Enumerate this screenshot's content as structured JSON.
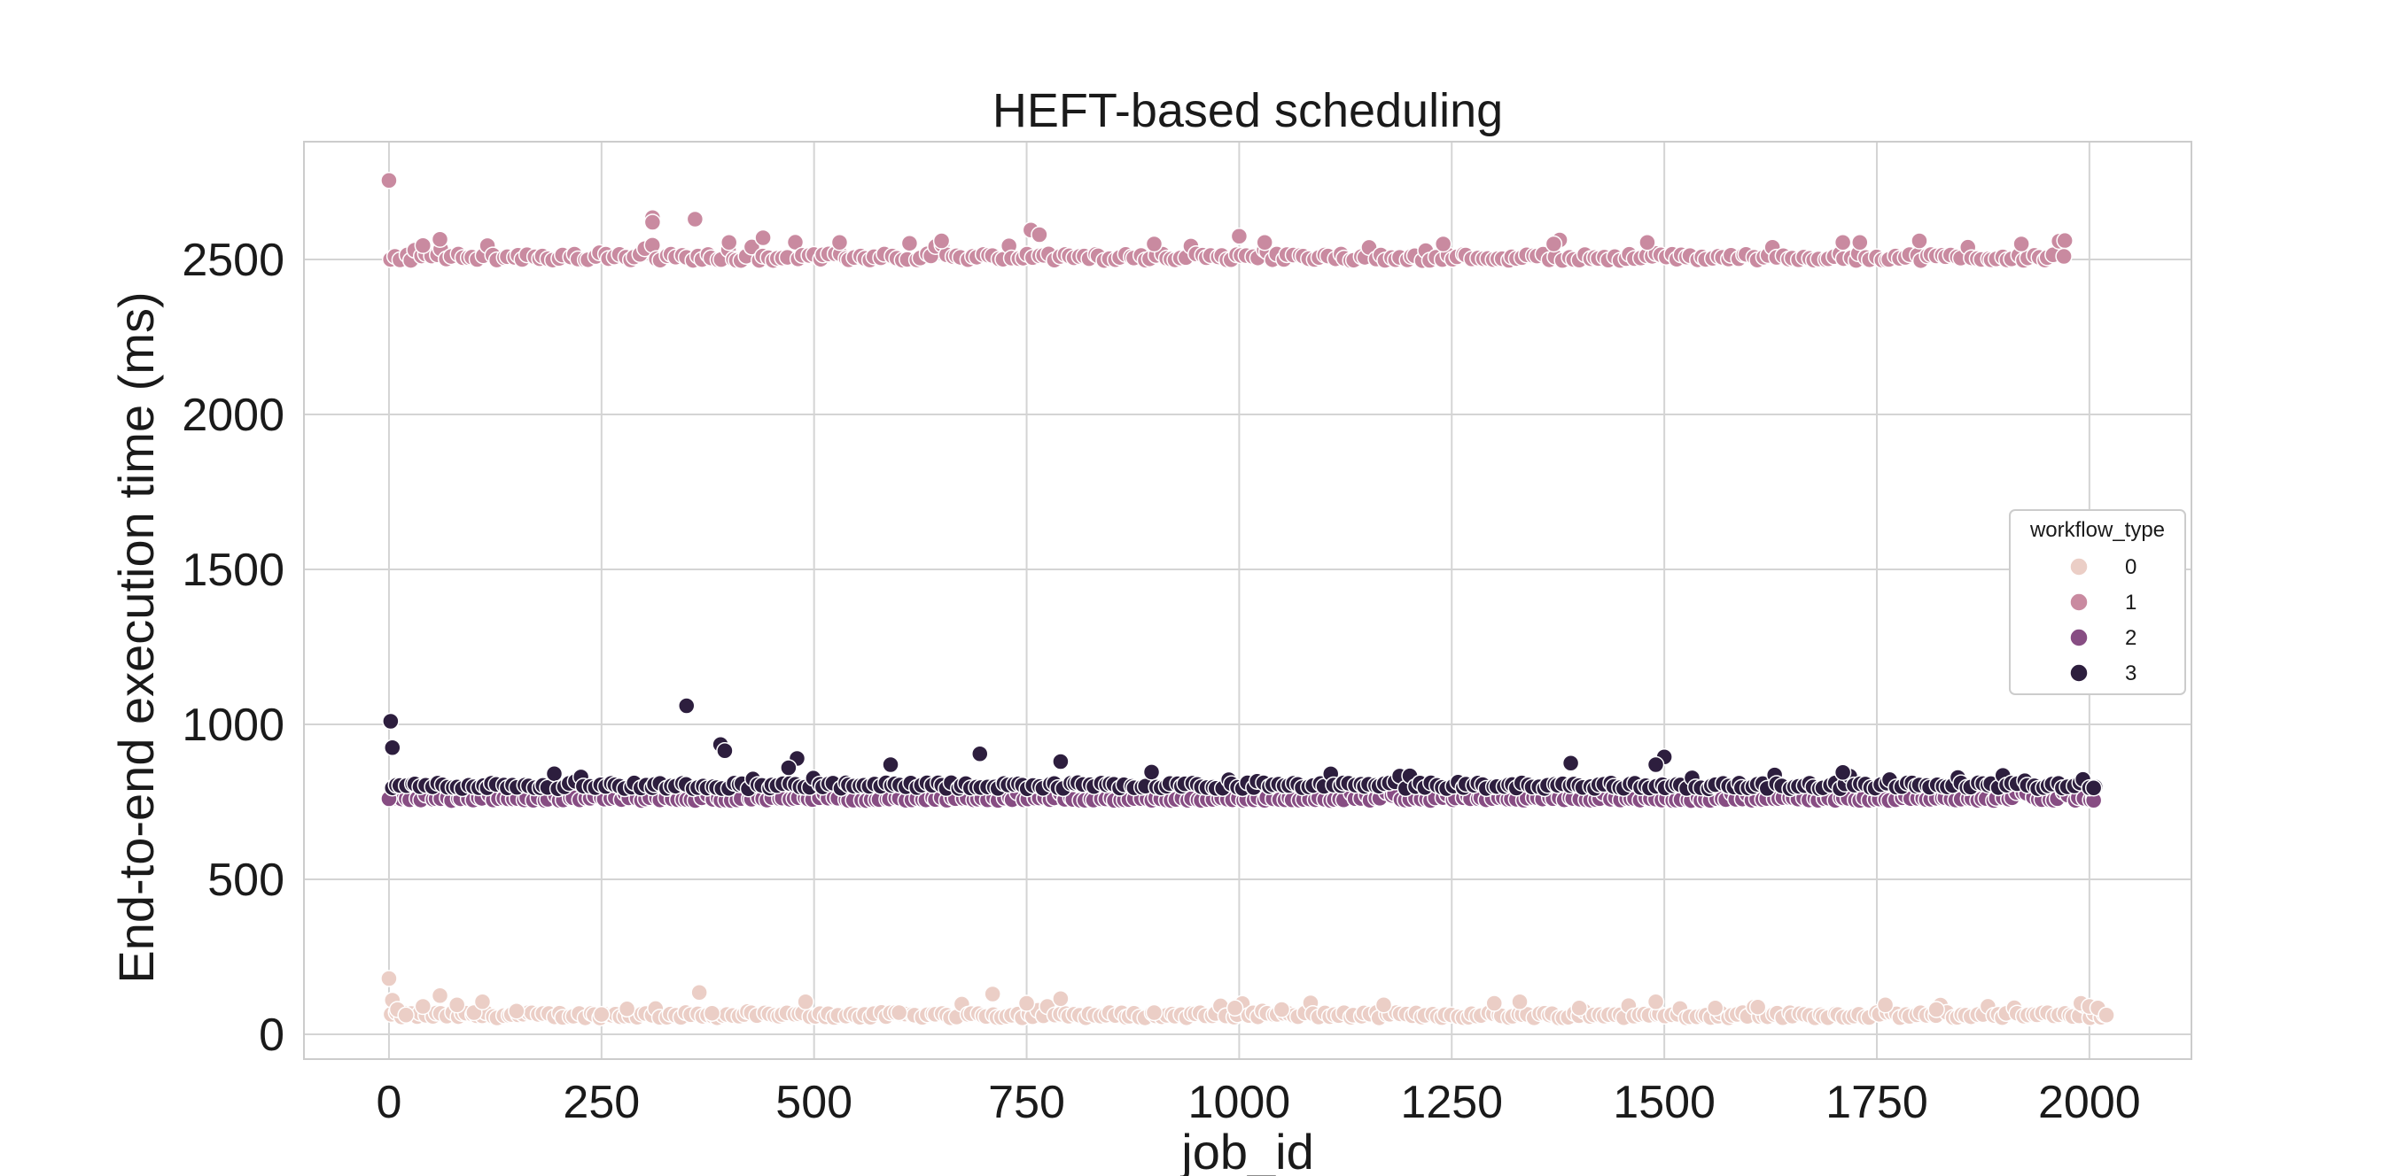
{
  "chart_data": {
    "type": "scatter",
    "title": "HEFT-based scheduling",
    "xlabel": "job_id",
    "ylabel": "End-to-end execution time (ms)",
    "xlim": [
      -100,
      2120
    ],
    "ylim": [
      -80,
      2880
    ],
    "xticks": [
      0,
      250,
      500,
      750,
      1000,
      1250,
      1500,
      1750,
      2000
    ],
    "yticks": [
      0,
      500,
      1000,
      1500,
      2000,
      2500
    ],
    "grid": true,
    "legend": {
      "title": "workflow_type",
      "placement": "right",
      "entries": [
        "0",
        "1",
        "2",
        "3"
      ]
    },
    "colors": {
      "0": "#ebcec6",
      "1": "#c98aa0",
      "2": "#874d83",
      "3": "#2d1e3e",
      "grid": "#d4d4d4",
      "background": "#ffffff"
    },
    "series": [
      {
        "name": "0",
        "x_range": [
          0,
          2020
        ],
        "points": [
          [
            0,
            180
          ],
          [
            4,
            110
          ],
          [
            10,
            80
          ],
          [
            20,
            62
          ],
          [
            40,
            90
          ],
          [
            60,
            125
          ],
          [
            80,
            95
          ],
          [
            100,
            70
          ],
          [
            110,
            105
          ],
          [
            150,
            75
          ],
          [
            250,
            64
          ],
          [
            280,
            82
          ],
          [
            365,
            135
          ],
          [
            380,
            68
          ],
          [
            490,
            105
          ],
          [
            600,
            70
          ],
          [
            710,
            130
          ],
          [
            750,
            100
          ],
          [
            790,
            115
          ],
          [
            900,
            70
          ],
          [
            995,
            85
          ],
          [
            1050,
            80
          ],
          [
            1170,
            95
          ],
          [
            1300,
            100
          ],
          [
            1330,
            105
          ],
          [
            1400,
            85
          ],
          [
            1490,
            105
          ],
          [
            1560,
            85
          ],
          [
            1610,
            88
          ],
          [
            1760,
            95
          ],
          [
            1820,
            80
          ],
          [
            1990,
            100
          ],
          [
            2000,
            90
          ],
          [
            2010,
            85
          ],
          [
            2020,
            62
          ]
        ],
        "baseline": 60,
        "jitter": 18
      },
      {
        "name": "1",
        "x_range": [
          0,
          1970
        ],
        "points": [
          [
            0,
            2755
          ],
          [
            60,
            2565
          ],
          [
            40,
            2545
          ],
          [
            310,
            2635
          ],
          [
            310,
            2620
          ],
          [
            360,
            2630
          ],
          [
            440,
            2570
          ],
          [
            400,
            2555
          ],
          [
            530,
            2555
          ],
          [
            650,
            2560
          ],
          [
            755,
            2595
          ],
          [
            765,
            2580
          ],
          [
            900,
            2550
          ],
          [
            1000,
            2575
          ],
          [
            1030,
            2555
          ],
          [
            1240,
            2550
          ],
          [
            1370,
            2550
          ],
          [
            1480,
            2555
          ],
          [
            1710,
            2555
          ],
          [
            1730,
            2555
          ],
          [
            1800,
            2560
          ],
          [
            1920,
            2550
          ],
          [
            1970,
            2510
          ]
        ],
        "baseline": 2505,
        "jitter": 22
      },
      {
        "name": "2",
        "x_range": [
          0,
          2005
        ],
        "points": [
          [
            0,
            760
          ],
          [
            2005,
            755
          ]
        ],
        "baseline": 758,
        "jitter": 10
      },
      {
        "name": "3",
        "x_range": [
          0,
          2005
        ],
        "points": [
          [
            2,
            1010
          ],
          [
            4,
            925
          ],
          [
            350,
            1060
          ],
          [
            390,
            935
          ],
          [
            395,
            915
          ],
          [
            480,
            890
          ],
          [
            470,
            860
          ],
          [
            590,
            870
          ],
          [
            695,
            905
          ],
          [
            790,
            880
          ],
          [
            1500,
            895
          ],
          [
            1490,
            870
          ],
          [
            1390,
            875
          ],
          [
            1710,
            845
          ],
          [
            2005,
            795
          ]
        ],
        "baseline": 800,
        "jitter": 20
      }
    ]
  }
}
